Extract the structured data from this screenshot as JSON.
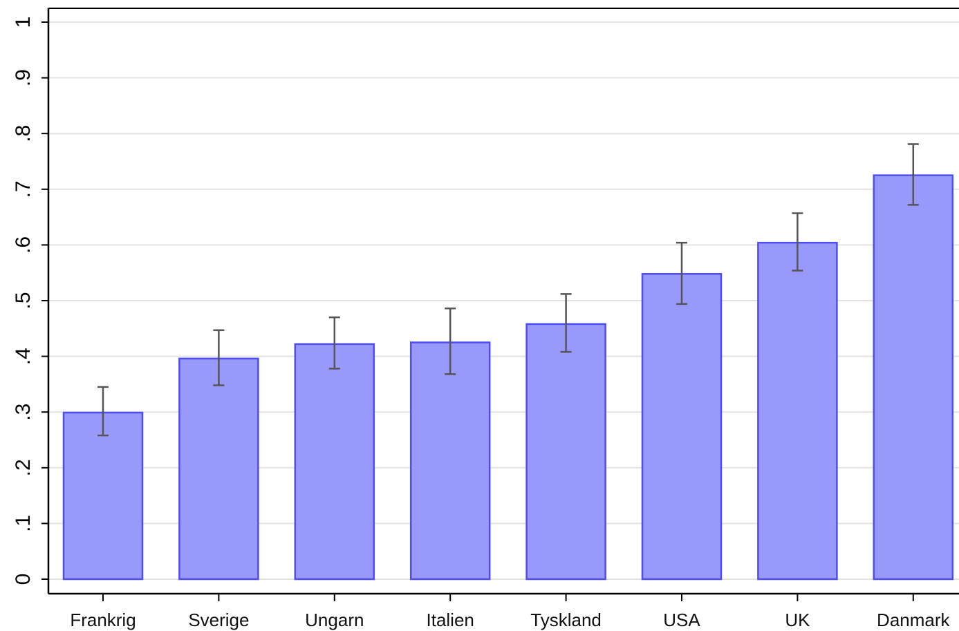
{
  "chart_data": {
    "type": "bar",
    "title": "",
    "xlabel": "",
    "ylabel": "",
    "categories": [
      "Frankrig",
      "Sverige",
      "Ungarn",
      "Italien",
      "Tyskland",
      "USA",
      "UK",
      "Danmark"
    ],
    "values": [
      0.299,
      0.396,
      0.422,
      0.425,
      0.458,
      0.548,
      0.604,
      0.725
    ],
    "error_bars": {
      "lower": [
        0.258,
        0.348,
        0.378,
        0.368,
        0.408,
        0.494,
        0.554,
        0.672
      ],
      "upper": [
        0.345,
        0.447,
        0.47,
        0.486,
        0.512,
        0.604,
        0.657,
        0.781
      ]
    },
    "ylim": [
      0,
      1
    ],
    "yticks": [
      0,
      0.1,
      0.2,
      0.3,
      0.4,
      0.5,
      0.6,
      0.7,
      0.8,
      0.9,
      1
    ],
    "ytick_labels": [
      "0",
      ".1",
      ".2",
      ".3",
      ".4",
      ".5",
      ".6",
      ".7",
      ".8",
      ".9",
      "1"
    ],
    "grid": true,
    "legend": "none",
    "colors": {
      "bar_fill": "#9999fb",
      "bar_edge": "#4d4df0",
      "error_bar": "#555555",
      "grid": "#e3e3e3",
      "axis": "#000000"
    }
  }
}
